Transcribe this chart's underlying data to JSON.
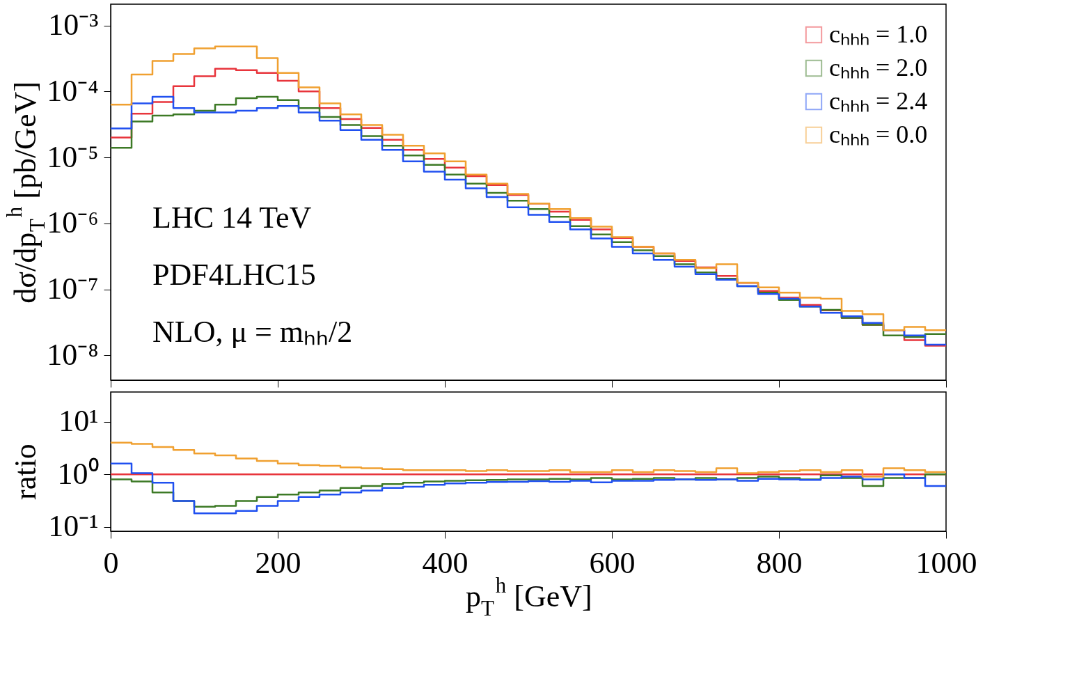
{
  "chart_data": [
    {
      "type": "histogram",
      "ylabel": "dσ/dp$_{T}$$^{h}$ [pb/GeV]",
      "log": "y",
      "grid": false,
      "legend": "top right",
      "tick_labels": "y",
      "annotations": [
        "LHC 14 TeV",
        "PDF4LHC15",
        "NLO, μ = mₕₕ/2"
      ],
      "bins": [
        0,
        25,
        50,
        75,
        100,
        125,
        150,
        175,
        200,
        225,
        250,
        275,
        300,
        325,
        350,
        375,
        400,
        425,
        450,
        475,
        500,
        525,
        550,
        575,
        600,
        625,
        650,
        675,
        700,
        725,
        750,
        775,
        800,
        825,
        850,
        875,
        900,
        925,
        950,
        975,
        1000
      ],
      "xlim": [
        0,
        1000
      ],
      "xticks": [
        0,
        200,
        400,
        600,
        800,
        1000
      ],
      "ylim": [
        4.2e-09,
        0.0021
      ],
      "yticks": [
        {
          "value": 0.001,
          "label": "10⁻³"
        },
        {
          "value": 0.0001,
          "label": "10⁻⁴"
        },
        {
          "value": 1e-05,
          "label": "10⁻⁵"
        },
        {
          "value": 1e-06,
          "label": "10⁻⁶"
        },
        {
          "value": 1e-07,
          "label": "10⁻⁷"
        },
        {
          "value": 1e-08,
          "label": "10⁻⁸"
        }
      ],
      "series": [
        {
          "name": "cₕₕₕ = 1.0",
          "color": "#e8353c",
          "values": [
            2e-05,
            4.6e-05,
            6.9e-05,
            0.00012,
            0.00017,
            0.00022,
            0.00021,
            0.00019,
            0.000145,
            0.0001,
            5.6e-05,
            3.8e-05,
            2.8e-05,
            1.85e-05,
            1.3e-05,
            9.5e-06,
            7e-06,
            5.2e-06,
            3.8e-06,
            2.7e-06,
            2e-06,
            1.5e-06,
            1.13e-06,
            8.1e-07,
            6e-07,
            4.4e-07,
            3.5e-07,
            2.7e-07,
            2.15e-07,
            1.6e-07,
            1.25e-07,
            9.4e-08,
            7.5e-08,
            5.8e-08,
            4.8e-08,
            3.7e-08,
            2.9e-08,
            2.4e-08,
            1.7e-08,
            1.4e-08
          ]
        },
        {
          "name": "cₕₕₕ = 2.0",
          "color": "#3d7a26",
          "values": [
            1.4e-05,
            3.5e-05,
            4.3e-05,
            4.5e-05,
            5.1e-05,
            6.3e-05,
            7.9e-05,
            8.3e-05,
            7.4e-05,
            5.6e-05,
            4.1e-05,
            3.1e-05,
            2.1e-05,
            1.5e-05,
            1.07e-05,
            7.7e-06,
            5.5e-06,
            4e-06,
            2.9e-06,
            2.2e-06,
            1.65e-06,
            1.26e-06,
            9.1e-07,
            6.8e-07,
            5.2e-07,
            3.9e-07,
            3.2e-07,
            2.4e-07,
            1.8e-07,
            1.45e-07,
            1.12e-07,
            8.9e-08,
            6.9e-08,
            5.5e-08,
            4.9e-08,
            3.7e-08,
            2.9e-08,
            2e-08,
            1.9e-08,
            2.1e-08
          ]
        },
        {
          "name": "cₕₕₕ = 2.4",
          "color": "#2050f0",
          "values": [
            2.75e-05,
            6.6e-05,
            8.3e-05,
            5.6e-05,
            4.8e-05,
            4.8e-05,
            5.1e-05,
            5.6e-05,
            6e-05,
            4.8e-05,
            3.6e-05,
            2.6e-05,
            1.85e-05,
            1.3e-05,
            8.7e-06,
            6.1e-06,
            4.6e-06,
            3.4e-06,
            2.5e-06,
            1.75e-06,
            1.35e-06,
            1.05e-06,
            8.1e-07,
            5.9e-07,
            4.4e-07,
            3.5e-07,
            2.8e-07,
            2.2e-07,
            1.7e-07,
            1.4e-07,
            1.12e-07,
            8.5e-08,
            7.2e-08,
            5.5e-08,
            4.4e-08,
            3.9e-08,
            3.1e-08,
            2.4e-08,
            2e-08,
            1.45e-08
          ]
        },
        {
          "name": "cₕₕₕ = 0.0",
          "color": "#f0a030",
          "values": [
            6.3e-05,
            0.00018,
            0.00029,
            0.00037,
            0.00045,
            0.00048,
            0.00048,
            0.00032,
            0.00019,
            0.000115,
            6.6e-05,
            4.5e-05,
            3.1e-05,
            2.2e-05,
            1.5e-05,
            1.15e-05,
            8.7e-06,
            5.5e-06,
            4e-06,
            2.8e-06,
            2e-06,
            1.65e-06,
            1.2e-06,
            8.9e-07,
            6.2e-07,
            4.4e-07,
            3.5e-07,
            2.8e-07,
            2.1e-07,
            2.4e-07,
            1.26e-07,
            1.07e-07,
            8.9e-08,
            7.5e-08,
            7.2e-08,
            4.7e-08,
            4.2e-08,
            2.4e-08,
            2.7e-08,
            2.4e-08
          ]
        }
      ]
    },
    {
      "type": "histogram",
      "ylabel": "ratio",
      "xlabel": "p$_{T}$$^{h}$ [GeV]",
      "log": "y",
      "grid": false,
      "bins": [
        0,
        25,
        50,
        75,
        100,
        125,
        150,
        175,
        200,
        225,
        250,
        275,
        300,
        325,
        350,
        375,
        400,
        425,
        450,
        475,
        500,
        525,
        550,
        575,
        600,
        625,
        650,
        675,
        700,
        725,
        750,
        775,
        800,
        825,
        850,
        875,
        900,
        925,
        950,
        975,
        1000
      ],
      "xlim": [
        0,
        1000
      ],
      "xticks": [
        0,
        200,
        400,
        600,
        800,
        1000
      ],
      "ylim": [
        0.082,
        37
      ],
      "yticks": [
        {
          "value": 0.1,
          "label": "10⁻¹"
        },
        {
          "value": 1,
          "label": "10⁰"
        },
        {
          "value": 10,
          "label": "10¹"
        }
      ],
      "series": [
        {
          "color": "#e8353c",
          "values": [
            1,
            1,
            1,
            1,
            1,
            1,
            1,
            1,
            1,
            1,
            1,
            1,
            1,
            1,
            1,
            1,
            1,
            1,
            1,
            1,
            1,
            1,
            1,
            1,
            1,
            1,
            1,
            1,
            1,
            1,
            1,
            1,
            1,
            1,
            1,
            1,
            1,
            1,
            1,
            1
          ]
        },
        {
          "color": "#3d7a26",
          "values": [
            0.8,
            0.73,
            0.45,
            0.31,
            0.24,
            0.25,
            0.31,
            0.37,
            0.41,
            0.45,
            0.49,
            0.55,
            0.6,
            0.65,
            0.69,
            0.73,
            0.75,
            0.77,
            0.78,
            0.8,
            0.8,
            0.82,
            0.8,
            0.85,
            0.8,
            0.82,
            0.85,
            0.8,
            0.85,
            0.8,
            0.85,
            0.9,
            0.85,
            0.8,
            0.95,
            0.85,
            0.6,
            0.85,
            0.85,
            1.0
          ]
        },
        {
          "color": "#2050f0",
          "values": [
            1.6,
            1.05,
            0.69,
            0.31,
            0.18,
            0.18,
            0.2,
            0.25,
            0.31,
            0.37,
            0.41,
            0.45,
            0.49,
            0.55,
            0.58,
            0.63,
            0.67,
            0.69,
            0.71,
            0.72,
            0.74,
            0.72,
            0.75,
            0.7,
            0.75,
            0.75,
            0.78,
            0.8,
            0.78,
            0.8,
            0.75,
            0.82,
            0.8,
            0.78,
            0.85,
            0.9,
            0.8,
            1.0,
            0.85,
            0.6
          ]
        },
        {
          "color": "#f0a030",
          "values": [
            4.0,
            3.8,
            3.3,
            2.9,
            2.5,
            2.3,
            2.0,
            1.8,
            1.6,
            1.5,
            1.45,
            1.35,
            1.3,
            1.25,
            1.2,
            1.2,
            1.2,
            1.15,
            1.2,
            1.15,
            1.15,
            1.2,
            1.1,
            1.1,
            1.2,
            1.1,
            1.2,
            1.15,
            1.1,
            1.3,
            1.05,
            1.1,
            1.15,
            1.2,
            1.1,
            1.2,
            0.9,
            1.3,
            1.2,
            1.1
          ]
        }
      ]
    }
  ]
}
